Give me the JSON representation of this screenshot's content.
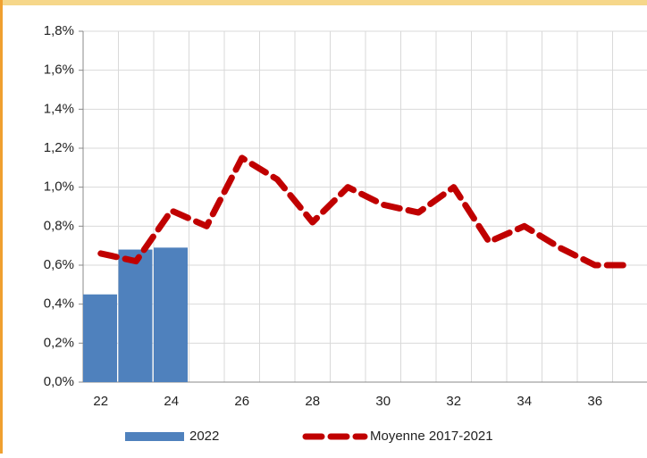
{
  "chart_data": {
    "type": "bar_line",
    "categories": [
      22,
      null,
      24,
      null,
      26,
      null,
      28,
      null,
      30,
      null,
      32,
      null,
      34,
      null,
      36,
      null
    ],
    "series": [
      {
        "name": "2022",
        "type": "bar",
        "color": "#4f81bd",
        "values": [
          0.45,
          0.68,
          0.69,
          null,
          null,
          null,
          null,
          null,
          null,
          null,
          null,
          null,
          null,
          null,
          null,
          null
        ]
      },
      {
        "name": "Moyenne 2017-2021",
        "type": "line",
        "color": "#c00000",
        "values": [
          0.66,
          0.62,
          0.88,
          0.8,
          1.15,
          1.04,
          0.82,
          1.0,
          0.91,
          0.87,
          1.0,
          0.72,
          0.8,
          0.69,
          0.6,
          0.6
        ]
      }
    ],
    "ylim": [
      0,
      1.8
    ],
    "yticks": [
      {
        "value": 0,
        "label": "0,0%"
      },
      {
        "value": 0.2,
        "label": "0,2%"
      },
      {
        "value": 0.4,
        "label": "0,4%"
      },
      {
        "value": 0.6,
        "label": "0,6%"
      },
      {
        "value": 0.8,
        "label": "0,8%"
      },
      {
        "value": 1.0,
        "label": "1,0%"
      },
      {
        "value": 1.2,
        "label": "1,2%"
      },
      {
        "value": 1.4,
        "label": "1,4%"
      },
      {
        "value": 1.6,
        "label": "1,6%"
      },
      {
        "value": 1.8,
        "label": "1,8%"
      }
    ],
    "grid": true,
    "legend": "bottom"
  }
}
